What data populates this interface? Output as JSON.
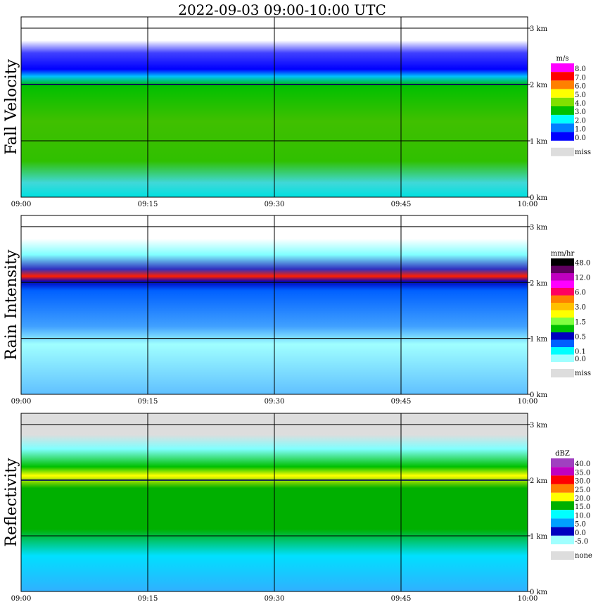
{
  "title": "2022-09-03   09:00-10:00 UTC",
  "chart_data": [
    {
      "type": "heatmap",
      "ylabel": "Fall Velocity",
      "unit": "m/s",
      "x_ticks": [
        "09:00",
        "09:15",
        "09:30",
        "09:45",
        "10:00"
      ],
      "y_ticks": [
        "0 km",
        "1 km",
        "2 km",
        "3 km"
      ],
      "ylim": [
        0,
        3.2
      ],
      "bright_band_km": 2.0,
      "legend": [
        {
          "label": "8.0",
          "color": "#ff00ff"
        },
        {
          "label": "7.0",
          "color": "#ff0000"
        },
        {
          "label": "6.0",
          "color": "#ff8000"
        },
        {
          "label": "5.0",
          "color": "#ffff00"
        },
        {
          "label": "4.0",
          "color": "#80e000"
        },
        {
          "label": "3.0",
          "color": "#00c000"
        },
        {
          "label": "2.0",
          "color": "#00ffff"
        },
        {
          "label": "1.0",
          "color": "#0080ff"
        },
        {
          "label": "0.0",
          "color": "#0000ff"
        }
      ],
      "miss_label": "miss",
      "miss_color": "#dddddd"
    },
    {
      "type": "heatmap",
      "ylabel": "Rain Intensity",
      "unit": "mm/hr",
      "x_ticks": [
        "09:00",
        "09:15",
        "09:30",
        "09:45",
        "10:00"
      ],
      "y_ticks": [
        "0 km",
        "1 km",
        "2 km",
        "3 km"
      ],
      "ylim": [
        0,
        3.2
      ],
      "bright_band_km": 2.0,
      "legend": [
        {
          "label": "48.0",
          "color": "#000000"
        },
        {
          "label": "",
          "color": "#600060"
        },
        {
          "label": "12.0",
          "color": "#c000c0"
        },
        {
          "label": "",
          "color": "#ff00ff"
        },
        {
          "label": "6.0",
          "color": "#ff0060"
        },
        {
          "label": "",
          "color": "#ff8000"
        },
        {
          "label": "3.0",
          "color": "#ffc000"
        },
        {
          "label": "",
          "color": "#ffff00"
        },
        {
          "label": "1.5",
          "color": "#80ff40"
        },
        {
          "label": "",
          "color": "#00c000"
        },
        {
          "label": "0.5",
          "color": "#0000c0"
        },
        {
          "label": "",
          "color": "#0060ff"
        },
        {
          "label": "0.1",
          "color": "#00ffff"
        },
        {
          "label": "0.0",
          "color": "#a0ffff"
        }
      ],
      "miss_label": "miss",
      "miss_color": "#dddddd"
    },
    {
      "type": "heatmap",
      "ylabel": "Reflectivity",
      "unit": "dBZ",
      "x_ticks": [
        "09:00",
        "09:15",
        "09:30",
        "09:45",
        "10:00"
      ],
      "y_ticks": [
        "0 km",
        "1 km",
        "2 km",
        "3 km"
      ],
      "ylim": [
        0,
        3.2
      ],
      "bright_band_km": 2.0,
      "legend": [
        {
          "label": "40.0",
          "color": "#a040c0"
        },
        {
          "label": "35.0",
          "color": "#c000c0"
        },
        {
          "label": "30.0",
          "color": "#ff0000"
        },
        {
          "label": "25.0",
          "color": "#ff8000"
        },
        {
          "label": "20.0",
          "color": "#ffff00"
        },
        {
          "label": "15.0",
          "color": "#00b000"
        },
        {
          "label": "10.0",
          "color": "#00ffff"
        },
        {
          "label": "5.0",
          "color": "#00a0ff"
        },
        {
          "label": "0.0",
          "color": "#0000c0"
        },
        {
          "label": "-5.0",
          "color": "#a0ffff"
        }
      ],
      "miss_label": "none",
      "miss_color": "#dddddd"
    }
  ]
}
